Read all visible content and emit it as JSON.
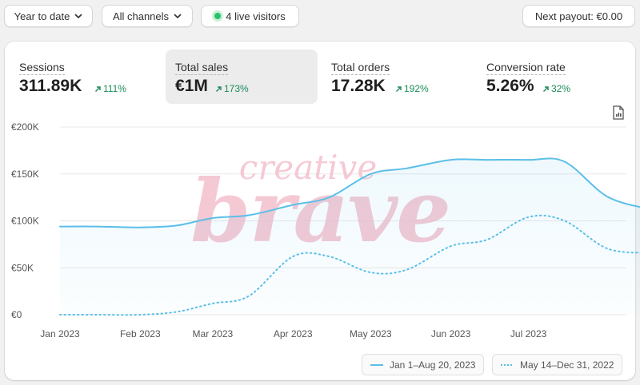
{
  "filters": {
    "date_range": "Year to date",
    "channels": "All channels",
    "live_visitors": "4 live visitors",
    "payout": "Next payout: €0.00"
  },
  "metrics": [
    {
      "label": "Sessions",
      "value": "311.89K",
      "delta": "111%",
      "selected": false
    },
    {
      "label": "Total sales",
      "value": "€1M",
      "delta": "173%",
      "selected": true
    },
    {
      "label": "Total orders",
      "value": "17.28K",
      "delta": "192%",
      "selected": false
    },
    {
      "label": "Conversion rate",
      "value": "5.26%",
      "delta": "32%",
      "selected": false
    }
  ],
  "watermark": "creative brave",
  "colors": {
    "current": "#5bbfe8",
    "previous": "#5bbfe8",
    "delta_up": "#1a8c5a",
    "grid": "#e8e8e8",
    "watermark": "#f2b8c6"
  },
  "chart_data": {
    "type": "line",
    "ylim": [
      0,
      200000
    ],
    "y_ticks": [
      0,
      50000,
      100000,
      150000,
      200000
    ],
    "y_tick_labels": [
      "€0",
      "€50K",
      "€100K",
      "€150K",
      "€200K"
    ],
    "x_tick_labels": [
      "Jan 2023",
      "Feb 2023",
      "Mar 2023",
      "Apr 2023",
      "May 2023",
      "Jun 2023",
      "Jul 2023"
    ],
    "grid": true,
    "legend_position": "bottom-right",
    "series": [
      {
        "name": "Jan 1–Aug 20, 2023",
        "style": "solid",
        "area": true,
        "x": [
          "2023-01-01",
          "2023-01-15",
          "2023-02-01",
          "2023-02-15",
          "2023-03-01",
          "2023-03-15",
          "2023-04-01",
          "2023-04-15",
          "2023-05-01",
          "2023-05-15",
          "2023-06-01",
          "2023-06-15",
          "2023-07-01",
          "2023-07-15",
          "2023-08-01",
          "2023-08-20"
        ],
        "values": [
          94000,
          94000,
          93000,
          95000,
          103000,
          106000,
          117000,
          125000,
          150000,
          156000,
          165000,
          165000,
          165000,
          163000,
          125000,
          111000
        ]
      },
      {
        "name": "May 14–Dec 31, 2022",
        "style": "dotted",
        "area": false,
        "x": [
          "2023-01-01",
          "2023-01-15",
          "2023-02-01",
          "2023-02-15",
          "2023-03-01",
          "2023-03-15",
          "2023-04-01",
          "2023-04-15",
          "2023-05-01",
          "2023-05-15",
          "2023-06-01",
          "2023-06-15",
          "2023-07-01",
          "2023-07-15",
          "2023-08-01",
          "2023-08-20"
        ],
        "values": [
          0,
          0,
          0,
          3000,
          12000,
          20000,
          62000,
          62000,
          45000,
          48000,
          73000,
          80000,
          104000,
          100000,
          70000,
          66000
        ]
      }
    ]
  }
}
